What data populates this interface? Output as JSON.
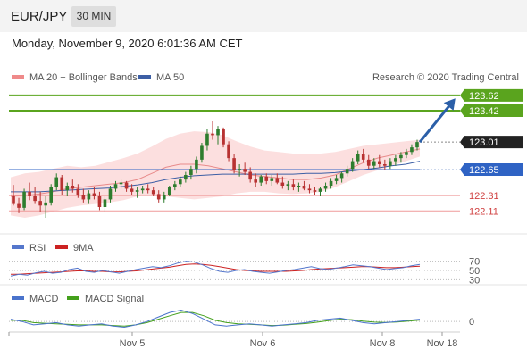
{
  "header": {
    "symbol": "EUR/JPY",
    "timeframe": "30 MIN",
    "datetime": "Monday, November 9, 2020 6:01:36 AM CET"
  },
  "legend": {
    "ma20": "MA 20 + Bollinger Bands",
    "ma50": "MA 50",
    "credit": "Research © 2020 Trading Central"
  },
  "colors": {
    "bull": "#2e7d2e",
    "bear": "#b83232",
    "green_level": "#5aa41e",
    "blue_level": "#2f63c4",
    "red_level": "#d04040",
    "current": "#222222",
    "arrow": "#2b5fa8",
    "bb_fill": "#fbd4d4",
    "ma20": "#e88b8b",
    "ma50": "#3d5fa5",
    "rsi": "#5577cc",
    "rsi_ma": "#cc2222",
    "macd": "#4a73cc",
    "macd_signal": "#44a01c"
  },
  "chart_data": {
    "type": "candlestick",
    "price_range": [
      121.95,
      123.7
    ],
    "levels": [
      {
        "value": 123.62,
        "label": "123.62",
        "kind": "green"
      },
      {
        "value": 123.42,
        "label": "123.42",
        "kind": "green"
      },
      {
        "value": 123.01,
        "label": "123.01",
        "kind": "current"
      },
      {
        "value": 122.65,
        "label": "122.65",
        "kind": "blue"
      },
      {
        "value": 122.31,
        "label": "122.31",
        "kind": "red"
      },
      {
        "value": 122.11,
        "label": "122.11",
        "kind": "red"
      }
    ],
    "x_ticks": [
      "Nov 5",
      "Nov 6",
      "Nov 8",
      "Nov 18"
    ],
    "candles": [
      [
        122.3,
        122.45,
        122.18,
        122.2
      ],
      [
        122.2,
        122.28,
        122.08,
        122.15
      ],
      [
        122.15,
        122.4,
        122.12,
        122.36
      ],
      [
        122.36,
        122.48,
        122.25,
        122.3
      ],
      [
        122.3,
        122.42,
        122.2,
        122.24
      ],
      [
        122.24,
        122.36,
        122.1,
        122.18
      ],
      [
        122.18,
        122.3,
        122.02,
        122.22
      ],
      [
        122.22,
        122.46,
        122.18,
        122.42
      ],
      [
        122.42,
        122.6,
        122.38,
        122.55
      ],
      [
        122.55,
        122.58,
        122.32,
        122.38
      ],
      [
        122.38,
        122.48,
        122.3,
        122.44
      ],
      [
        122.44,
        122.52,
        122.35,
        122.4
      ],
      [
        122.4,
        122.46,
        122.28,
        122.32
      ],
      [
        122.32,
        122.4,
        122.22,
        122.26
      ],
      [
        122.26,
        122.38,
        122.2,
        122.34
      ],
      [
        122.34,
        122.42,
        122.26,
        122.3
      ],
      [
        122.3,
        122.36,
        122.12,
        122.16
      ],
      [
        122.16,
        122.3,
        122.1,
        122.26
      ],
      [
        122.26,
        122.44,
        122.22,
        122.4
      ],
      [
        122.4,
        122.5,
        122.36,
        122.46
      ],
      [
        122.46,
        122.52,
        122.4,
        122.48
      ],
      [
        122.48,
        122.5,
        122.36,
        122.4
      ],
      [
        122.4,
        122.46,
        122.32,
        122.36
      ],
      [
        122.36,
        122.42,
        122.28,
        122.38
      ],
      [
        122.38,
        122.44,
        122.34,
        122.4
      ],
      [
        122.4,
        122.46,
        122.34,
        122.38
      ],
      [
        122.38,
        122.42,
        122.3,
        122.33
      ],
      [
        122.33,
        122.38,
        122.22,
        122.26
      ],
      [
        122.26,
        122.36,
        122.22,
        122.32
      ],
      [
        122.32,
        122.44,
        122.3,
        122.42
      ],
      [
        122.42,
        122.5,
        122.38,
        122.46
      ],
      [
        122.46,
        122.56,
        122.42,
        122.52
      ],
      [
        122.52,
        122.62,
        122.48,
        122.58
      ],
      [
        122.58,
        122.7,
        122.52,
        122.66
      ],
      [
        122.66,
        122.82,
        122.6,
        122.78
      ],
      [
        122.78,
        123.0,
        122.74,
        122.96
      ],
      [
        122.96,
        123.18,
        122.9,
        123.12
      ],
      [
        123.12,
        123.28,
        123.04,
        123.1
      ],
      [
        123.1,
        123.22,
        122.98,
        123.18
      ],
      [
        123.18,
        123.2,
        122.94,
        122.98
      ],
      [
        122.98,
        123.02,
        122.76,
        122.8
      ],
      [
        122.8,
        122.86,
        122.6,
        122.64
      ],
      [
        122.64,
        122.72,
        122.56,
        122.66
      ],
      [
        122.66,
        122.74,
        122.58,
        122.62
      ],
      [
        122.62,
        122.68,
        122.48,
        122.52
      ],
      [
        122.52,
        122.6,
        122.42,
        122.48
      ],
      [
        122.48,
        122.58,
        122.44,
        122.56
      ],
      [
        122.56,
        122.6,
        122.46,
        122.5
      ],
      [
        122.5,
        122.58,
        122.44,
        122.54
      ],
      [
        122.54,
        122.6,
        122.46,
        122.48
      ],
      [
        122.48,
        122.56,
        122.4,
        122.44
      ],
      [
        122.44,
        122.5,
        122.38,
        122.46
      ],
      [
        122.46,
        122.52,
        122.38,
        122.42
      ],
      [
        122.42,
        122.48,
        122.36,
        122.44
      ],
      [
        122.44,
        122.5,
        122.38,
        122.4
      ],
      [
        122.4,
        122.46,
        122.34,
        122.38
      ],
      [
        122.38,
        122.42,
        122.32,
        122.36
      ],
      [
        122.36,
        122.42,
        122.3,
        122.4
      ],
      [
        122.4,
        122.48,
        122.36,
        122.44
      ],
      [
        122.44,
        122.54,
        122.4,
        122.5
      ],
      [
        122.5,
        122.58,
        122.46,
        122.54
      ],
      [
        122.54,
        122.62,
        122.48,
        122.6
      ],
      [
        122.6,
        122.7,
        122.56,
        122.66
      ],
      [
        122.66,
        122.8,
        122.62,
        122.76
      ],
      [
        122.76,
        122.9,
        122.72,
        122.86
      ],
      [
        122.86,
        122.92,
        122.74,
        122.78
      ],
      [
        122.78,
        122.84,
        122.66,
        122.7
      ],
      [
        122.7,
        122.8,
        122.66,
        122.76
      ],
      [
        122.76,
        122.84,
        122.68,
        122.72
      ],
      [
        122.72,
        122.78,
        122.64,
        122.7
      ],
      [
        122.7,
        122.8,
        122.66,
        122.76
      ],
      [
        122.76,
        122.84,
        122.7,
        122.8
      ],
      [
        122.8,
        122.88,
        122.74,
        122.84
      ],
      [
        122.84,
        122.92,
        122.8,
        122.88
      ],
      [
        122.88,
        122.98,
        122.84,
        122.94
      ],
      [
        122.94,
        123.04,
        122.9,
        123.01
      ]
    ],
    "bb_upper": [
      122.55,
      122.6,
      122.62,
      122.66,
      122.7,
      122.68,
      122.7,
      122.75,
      122.8,
      122.86,
      122.95,
      123.05,
      123.12,
      123.15,
      123.14,
      123.1,
      123.02,
      122.95,
      122.9,
      122.88,
      122.86,
      122.85,
      122.86,
      122.88,
      122.92,
      122.96,
      122.98,
      123.0,
      123.02,
      123.04
    ],
    "bb_lower": [
      122.05,
      122.02,
      122.05,
      122.1,
      122.15,
      122.18,
      122.2,
      122.22,
      122.25,
      122.3,
      122.32,
      122.3,
      122.28,
      122.26,
      122.28,
      122.3,
      122.34,
      122.36,
      122.36,
      122.34,
      122.33,
      122.34,
      122.36,
      122.42,
      122.5,
      122.58,
      122.64,
      122.7,
      122.76,
      122.82
    ],
    "ma20": [
      122.3,
      122.31,
      122.33,
      122.36,
      122.4,
      122.42,
      122.44,
      122.46,
      122.48,
      122.52,
      122.6,
      122.68,
      122.72,
      122.72,
      122.7,
      122.66,
      122.62,
      122.58,
      122.56,
      122.54,
      122.52,
      122.52,
      122.54,
      122.58,
      122.66,
      122.74,
      122.8,
      122.84,
      122.88,
      122.92
    ],
    "ma50": [
      122.36,
      122.36,
      122.36,
      122.37,
      122.38,
      122.39,
      122.4,
      122.41,
      122.43,
      122.45,
      122.48,
      122.52,
      122.55,
      122.57,
      122.58,
      122.59,
      122.59,
      122.59,
      122.59,
      122.59,
      122.59,
      122.6,
      122.6,
      122.61,
      122.63,
      122.65,
      122.67,
      122.7,
      122.72,
      122.76
    ],
    "rsi_panel": {
      "title": "RSI",
      "ma_label": "9MA",
      "levels": [
        "70",
        "50",
        "30"
      ],
      "rsi": [
        38,
        42,
        40,
        45,
        48,
        44,
        46,
        52,
        55,
        48,
        46,
        50,
        47,
        44,
        48,
        52,
        55,
        58,
        56,
        60,
        66,
        70,
        68,
        62,
        54,
        48,
        46,
        50,
        52,
        48,
        46,
        44,
        47,
        50,
        52,
        55,
        58,
        54,
        52,
        55,
        58,
        62,
        60,
        58,
        55,
        52,
        54,
        56,
        60,
        63
      ],
      "rsi_ma": [
        42,
        42,
        43,
        44,
        45,
        46,
        47,
        48,
        49,
        49,
        48,
        48,
        47,
        47,
        48,
        49,
        51,
        53,
        55,
        57,
        60,
        63,
        64,
        63,
        61,
        58,
        55,
        52,
        50,
        49,
        48,
        48,
        48,
        48,
        49,
        50,
        52,
        53,
        54,
        55,
        56,
        57,
        58,
        58,
        57,
        56,
        56,
        57,
        58,
        59
      ]
    },
    "macd_panel": {
      "title": "MACD",
      "signal_label": "MACD Signal",
      "zero_label": "0",
      "macd": [
        2,
        0,
        -3,
        -2,
        -1,
        -3,
        -4,
        -3,
        -2,
        -4,
        -5,
        -3,
        0,
        4,
        8,
        10,
        7,
        2,
        -3,
        -4,
        -3,
        -2,
        -3,
        -4,
        -3,
        -2,
        -1,
        1,
        2,
        3,
        1,
        -1,
        -2,
        -1,
        0,
        1,
        2
      ],
      "signal": [
        1,
        1,
        -1,
        -1.5,
        -2,
        -2.5,
        -3,
        -3,
        -3,
        -3.5,
        -4,
        -3,
        -1,
        2,
        5,
        8,
        8,
        5,
        1,
        -1,
        -2,
        -2.5,
        -3,
        -3.5,
        -3.2,
        -2.5,
        -1.8,
        -0.6,
        0.8,
        2,
        1.6,
        0.4,
        -0.6,
        -0.8,
        -0.4,
        0.3,
        1.2
      ]
    }
  }
}
